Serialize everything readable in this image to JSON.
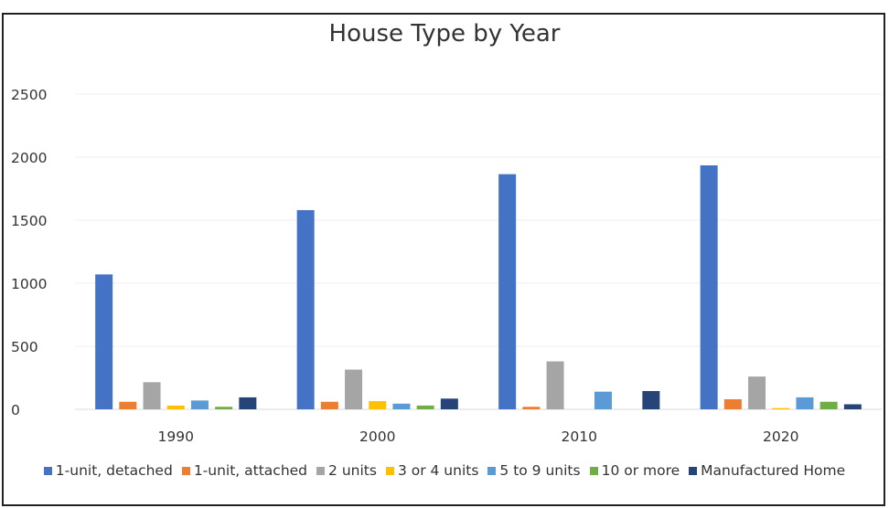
{
  "chart_data": {
    "type": "bar",
    "title": "House Type by Year",
    "categories": [
      "1990",
      "2000",
      "2010",
      "2020"
    ],
    "ylim": [
      0,
      2500
    ],
    "yticks": [
      0,
      500,
      1000,
      1500,
      2000,
      2500
    ],
    "grid": true,
    "legend_position": "bottom",
    "series": [
      {
        "name": "1-unit, detached",
        "color": "#4472c4",
        "values": [
          1070,
          1580,
          1865,
          1935
        ]
      },
      {
        "name": "1-unit, attached",
        "color": "#ed7d31",
        "values": [
          60,
          60,
          20,
          80
        ]
      },
      {
        "name": "2 units",
        "color": "#a5a5a5",
        "values": [
          215,
          315,
          380,
          260
        ]
      },
      {
        "name": "3 or 4 units",
        "color": "#ffc000",
        "values": [
          30,
          65,
          0,
          10
        ]
      },
      {
        "name": "5 to 9 units",
        "color": "#5b9bd5",
        "values": [
          70,
          45,
          140,
          95
        ]
      },
      {
        "name": "10 or more",
        "color": "#70ad47",
        "values": [
          20,
          30,
          0,
          60
        ]
      },
      {
        "name": "Manufactured Home",
        "color": "#264478",
        "values": [
          95,
          85,
          145,
          40
        ]
      }
    ]
  }
}
